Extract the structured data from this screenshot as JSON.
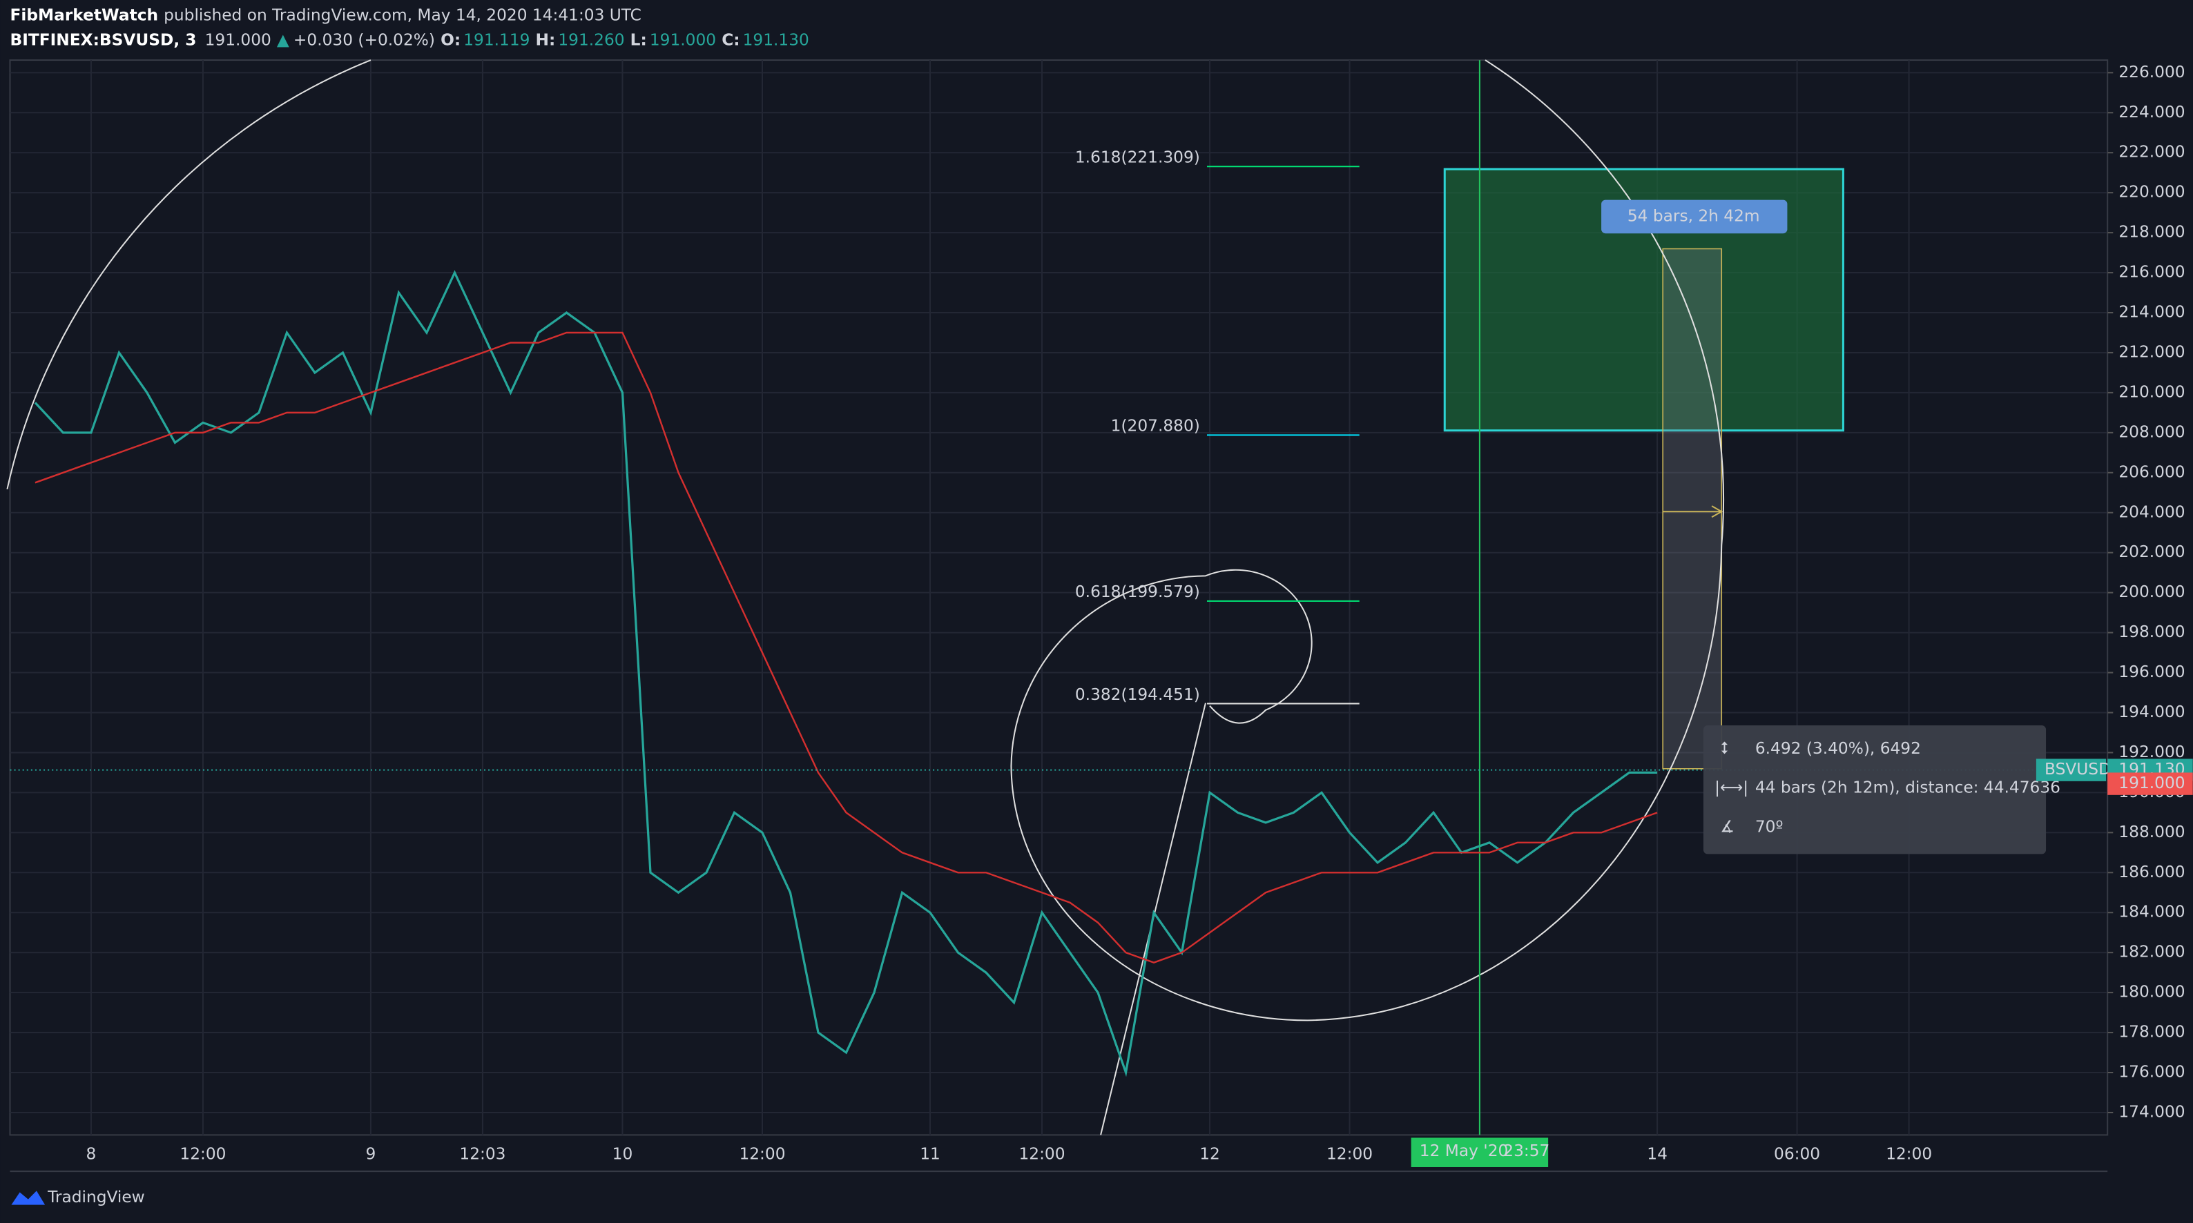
{
  "header": {
    "publisher": "FibMarketWatch",
    "published": "published on TradingView.com, May 14, 2020 14:41:03 UTC",
    "symbol": "BITFINEX:BSVUSD, 3",
    "last": "191.000",
    "arrow": "▲",
    "change": "+0.030 (+0.02%)",
    "o_label": "O:",
    "o": "191.119",
    "h_label": "H:",
    "h": "191.260",
    "l_label": "L:",
    "l": "191.000",
    "c_label": "C:",
    "c": "191.130"
  },
  "chart_data": {
    "type": "line",
    "categories": [
      null,
      null,
      "8",
      null,
      null,
      null,
      "12:00",
      null,
      null,
      null,
      null,
      null,
      "9",
      null,
      null,
      null,
      "12:03",
      null,
      null,
      null,
      null,
      "10",
      null,
      null,
      null,
      null,
      "12:00",
      null,
      null,
      null,
      null,
      null,
      "11",
      null,
      null,
      null,
      "12:00",
      null,
      null,
      null,
      null,
      null,
      "12",
      null,
      null,
      null,
      null,
      "12:00",
      null,
      null,
      null,
      null,
      null,
      null,
      null,
      null,
      null,
      null,
      "14",
      null,
      null,
      null,
      null,
      "06:00",
      null,
      null,
      null,
      "12:00"
    ],
    "series": [
      {
        "color": "#26a69a",
        "values": [
          209.5,
          208,
          208,
          212,
          210,
          207.5,
          208.5,
          208,
          209,
          213,
          211,
          212,
          209,
          215,
          213,
          216,
          213,
          210,
          213,
          214,
          213,
          210,
          186,
          185,
          186,
          189,
          188,
          185,
          178,
          177,
          180,
          185,
          184,
          182,
          181,
          179.5,
          184,
          182,
          180,
          176,
          184,
          182,
          190,
          189,
          188.5,
          189,
          190,
          188,
          186.5,
          187.5,
          189,
          187,
          187.5,
          186.5,
          187.5,
          189,
          190,
          191,
          191,
          null,
          null,
          null,
          null,
          null,
          null,
          null,
          null,
          null
        ]
      },
      {
        "color": "#d32f2f",
        "values": [
          205.5,
          206,
          206.5,
          207,
          207.5,
          208,
          208,
          208.5,
          208.5,
          209,
          209,
          209.5,
          210,
          210.5,
          211,
          211.5,
          212,
          212.5,
          212.5,
          213,
          213,
          213,
          210,
          206,
          203,
          200,
          197,
          194,
          191,
          189,
          188,
          187,
          186.5,
          186,
          186,
          185.5,
          185,
          184.5,
          183.5,
          182,
          181.5,
          182,
          183,
          184,
          185,
          185.5,
          186,
          186,
          186,
          186.5,
          187,
          187,
          187,
          187.5,
          187.5,
          188,
          188,
          188.5,
          189,
          null,
          null,
          null,
          null,
          null,
          null,
          null,
          null,
          null
        ]
      }
    ],
    "ylim": [
      172.88,
      226.63
    ],
    "yticks": [
      {
        "value": 174,
        "label": "174.000"
      },
      {
        "value": 176,
        "label": "176.000"
      },
      {
        "value": 178,
        "label": "178.000"
      },
      {
        "value": 180,
        "label": "180.000"
      },
      {
        "value": 182,
        "label": "182.000"
      },
      {
        "value": 184,
        "label": "184.000"
      },
      {
        "value": 186,
        "label": "186.000"
      },
      {
        "value": 188,
        "label": "188.000"
      },
      {
        "value": 190,
        "label": "190.000"
      },
      {
        "value": 192,
        "label": "192.000"
      },
      {
        "value": 194,
        "label": "194.000"
      },
      {
        "value": 196,
        "label": "196.000"
      },
      {
        "value": 198,
        "label": "198.000"
      },
      {
        "value": 200,
        "label": "200.000"
      },
      {
        "value": 202,
        "label": "202.000"
      },
      {
        "value": 204,
        "label": "204.000"
      },
      {
        "value": 206,
        "label": "206.000"
      },
      {
        "value": 208,
        "label": "208.000"
      },
      {
        "value": 210,
        "label": "210.000"
      },
      {
        "value": 212,
        "label": "212.000"
      },
      {
        "value": 214,
        "label": "214.000"
      },
      {
        "value": 216,
        "label": "216.000"
      },
      {
        "value": 218,
        "label": "218.000"
      },
      {
        "value": 220,
        "label": "220.000"
      },
      {
        "value": 222,
        "label": "222.000"
      },
      {
        "value": 224,
        "label": "224.000"
      },
      {
        "value": 226,
        "label": "226.000"
      }
    ],
    "grid": true,
    "fib_levels": [
      {
        "label": "1.618(221.309)",
        "value": 221.309,
        "color": "#00e676"
      },
      {
        "label": "1(207.880)",
        "value": 207.88,
        "color": "#00e5ff"
      },
      {
        "label": "0.618(199.579)",
        "value": 199.579,
        "color": "#00e676"
      },
      {
        "label": "0.382(194.451)",
        "value": 194.451,
        "color": "#fff3c4"
      }
    ],
    "last_price": {
      "value": 191.13,
      "label": "191.130"
    },
    "close_price": {
      "value": 191,
      "label": "191.000"
    },
    "symbol_tag": "BSVUSD",
    "cursor_date": "12 May '20",
    "cursor_time": "23:57",
    "bars_label": "54 bars, 2h 42m",
    "tooltip": [
      "6.492 (3.40%), 6492",
      "44 bars (2h 12m), distance: 44.47636",
      "70º"
    ]
  },
  "footer": {
    "brand": "TradingView"
  }
}
